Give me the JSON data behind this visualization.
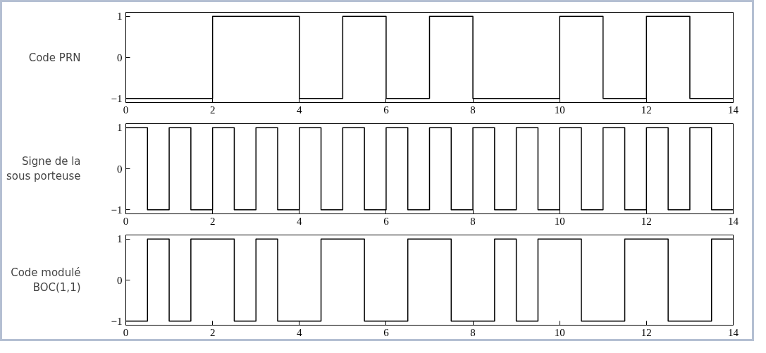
{
  "chart_data": [
    {
      "type": "step",
      "ylabel": "Code PRN",
      "x": [
        0,
        0.5,
        1,
        1.5,
        2,
        2.5,
        3,
        3.5,
        4,
        4.5,
        5,
        5.5,
        6,
        6.5,
        7,
        7.5,
        8,
        8.5,
        9,
        9.5,
        10,
        10.5,
        11,
        11.5,
        12,
        12.5,
        13,
        13.5,
        14
      ],
      "series": [
        {
          "color": "#000000",
          "values": [
            -1,
            -1,
            -1,
            -1,
            1,
            1,
            1,
            1,
            -1,
            -1,
            1,
            1,
            -1,
            -1,
            1,
            1,
            -1,
            -1,
            -1,
            -1,
            1,
            1,
            -1,
            -1,
            1,
            1,
            -1,
            -1,
            -1
          ]
        }
      ],
      "xlim": [
        0,
        14
      ],
      "ylim": [
        -1.1,
        1.1
      ],
      "xticks": [
        0,
        2,
        4,
        6,
        8,
        10,
        12,
        14
      ],
      "yticks": [
        -1,
        0,
        1
      ],
      "grid": false,
      "line_style": "solid"
    },
    {
      "type": "step",
      "ylabel": "Signe de la\nsous porteuse",
      "x": [
        0,
        0.5,
        1,
        1.5,
        2,
        2.5,
        3,
        3.5,
        4,
        4.5,
        5,
        5.5,
        6,
        6.5,
        7,
        7.5,
        8,
        8.5,
        9,
        9.5,
        10,
        10.5,
        11,
        11.5,
        12,
        12.5,
        13,
        13.5,
        14
      ],
      "series": [
        {
          "color": "#000000",
          "values": [
            1,
            -1,
            1,
            -1,
            1,
            -1,
            1,
            -1,
            1,
            -1,
            1,
            -1,
            1,
            -1,
            1,
            -1,
            1,
            -1,
            1,
            -1,
            1,
            -1,
            1,
            -1,
            1,
            -1,
            1,
            -1,
            -1
          ]
        }
      ],
      "xlim": [
        0,
        14
      ],
      "ylim": [
        -1.1,
        1.1
      ],
      "xticks": [
        0,
        2,
        4,
        6,
        8,
        10,
        12,
        14
      ],
      "yticks": [
        -1,
        0,
        1
      ],
      "grid": false,
      "line_style": "solid"
    },
    {
      "type": "step",
      "ylabel": "Code modulé\nBOC(1,1)",
      "x": [
        0,
        0.5,
        1,
        1.5,
        2,
        2.5,
        3,
        3.5,
        4,
        4.5,
        5,
        5.5,
        6,
        6.5,
        7,
        7.5,
        8,
        8.5,
        9,
        9.5,
        10,
        10.5,
        11,
        11.5,
        12,
        12.5,
        13,
        13.5,
        14
      ],
      "series": [
        {
          "color": "#000000",
          "values": [
            -1,
            1,
            -1,
            1,
            1,
            -1,
            1,
            -1,
            -1,
            1,
            1,
            -1,
            -1,
            1,
            1,
            -1,
            -1,
            1,
            -1,
            1,
            1,
            -1,
            -1,
            1,
            1,
            -1,
            -1,
            1,
            1
          ]
        }
      ],
      "xlim": [
        0,
        14
      ],
      "ylim": [
        -1.1,
        1.1
      ],
      "xticks": [
        0,
        2,
        4,
        6,
        8,
        10,
        12,
        14
      ],
      "yticks": [
        -1,
        0,
        1
      ],
      "grid": false,
      "line_style": "solid"
    }
  ]
}
